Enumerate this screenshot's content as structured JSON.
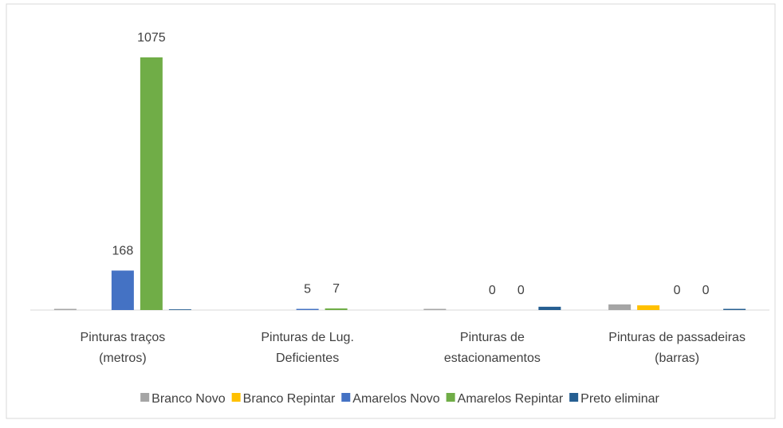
{
  "chart_data": {
    "type": "bar",
    "categories": [
      "Pinturas traços\n(metros)",
      "Pinturas de Lug.\nDeficientes",
      "Pinturas de\nestacionamentos",
      "Pinturas de passadeiras\n(barras)"
    ],
    "series": [
      {
        "name": "Branco Novo",
        "color": "#a5a5a5",
        "values": [
          5,
          0,
          5,
          24
        ],
        "data_labels": false
      },
      {
        "name": "Branco Repintar",
        "color": "#ffc000",
        "values": [
          0,
          0,
          0,
          20
        ],
        "data_labels": false
      },
      {
        "name": "Amarelos Novo",
        "color": "#4472c4",
        "values": [
          168,
          5,
          0,
          0
        ],
        "data_labels": true
      },
      {
        "name": "Amarelos Repintar",
        "color": "#70ad47",
        "values": [
          1075,
          7,
          0,
          0
        ],
        "data_labels": true
      },
      {
        "name": "Preto eliminar",
        "color": "#255e91",
        "values": [
          3,
          0,
          14,
          5
        ],
        "data_labels": false
      }
    ],
    "legend": "bottom"
  }
}
